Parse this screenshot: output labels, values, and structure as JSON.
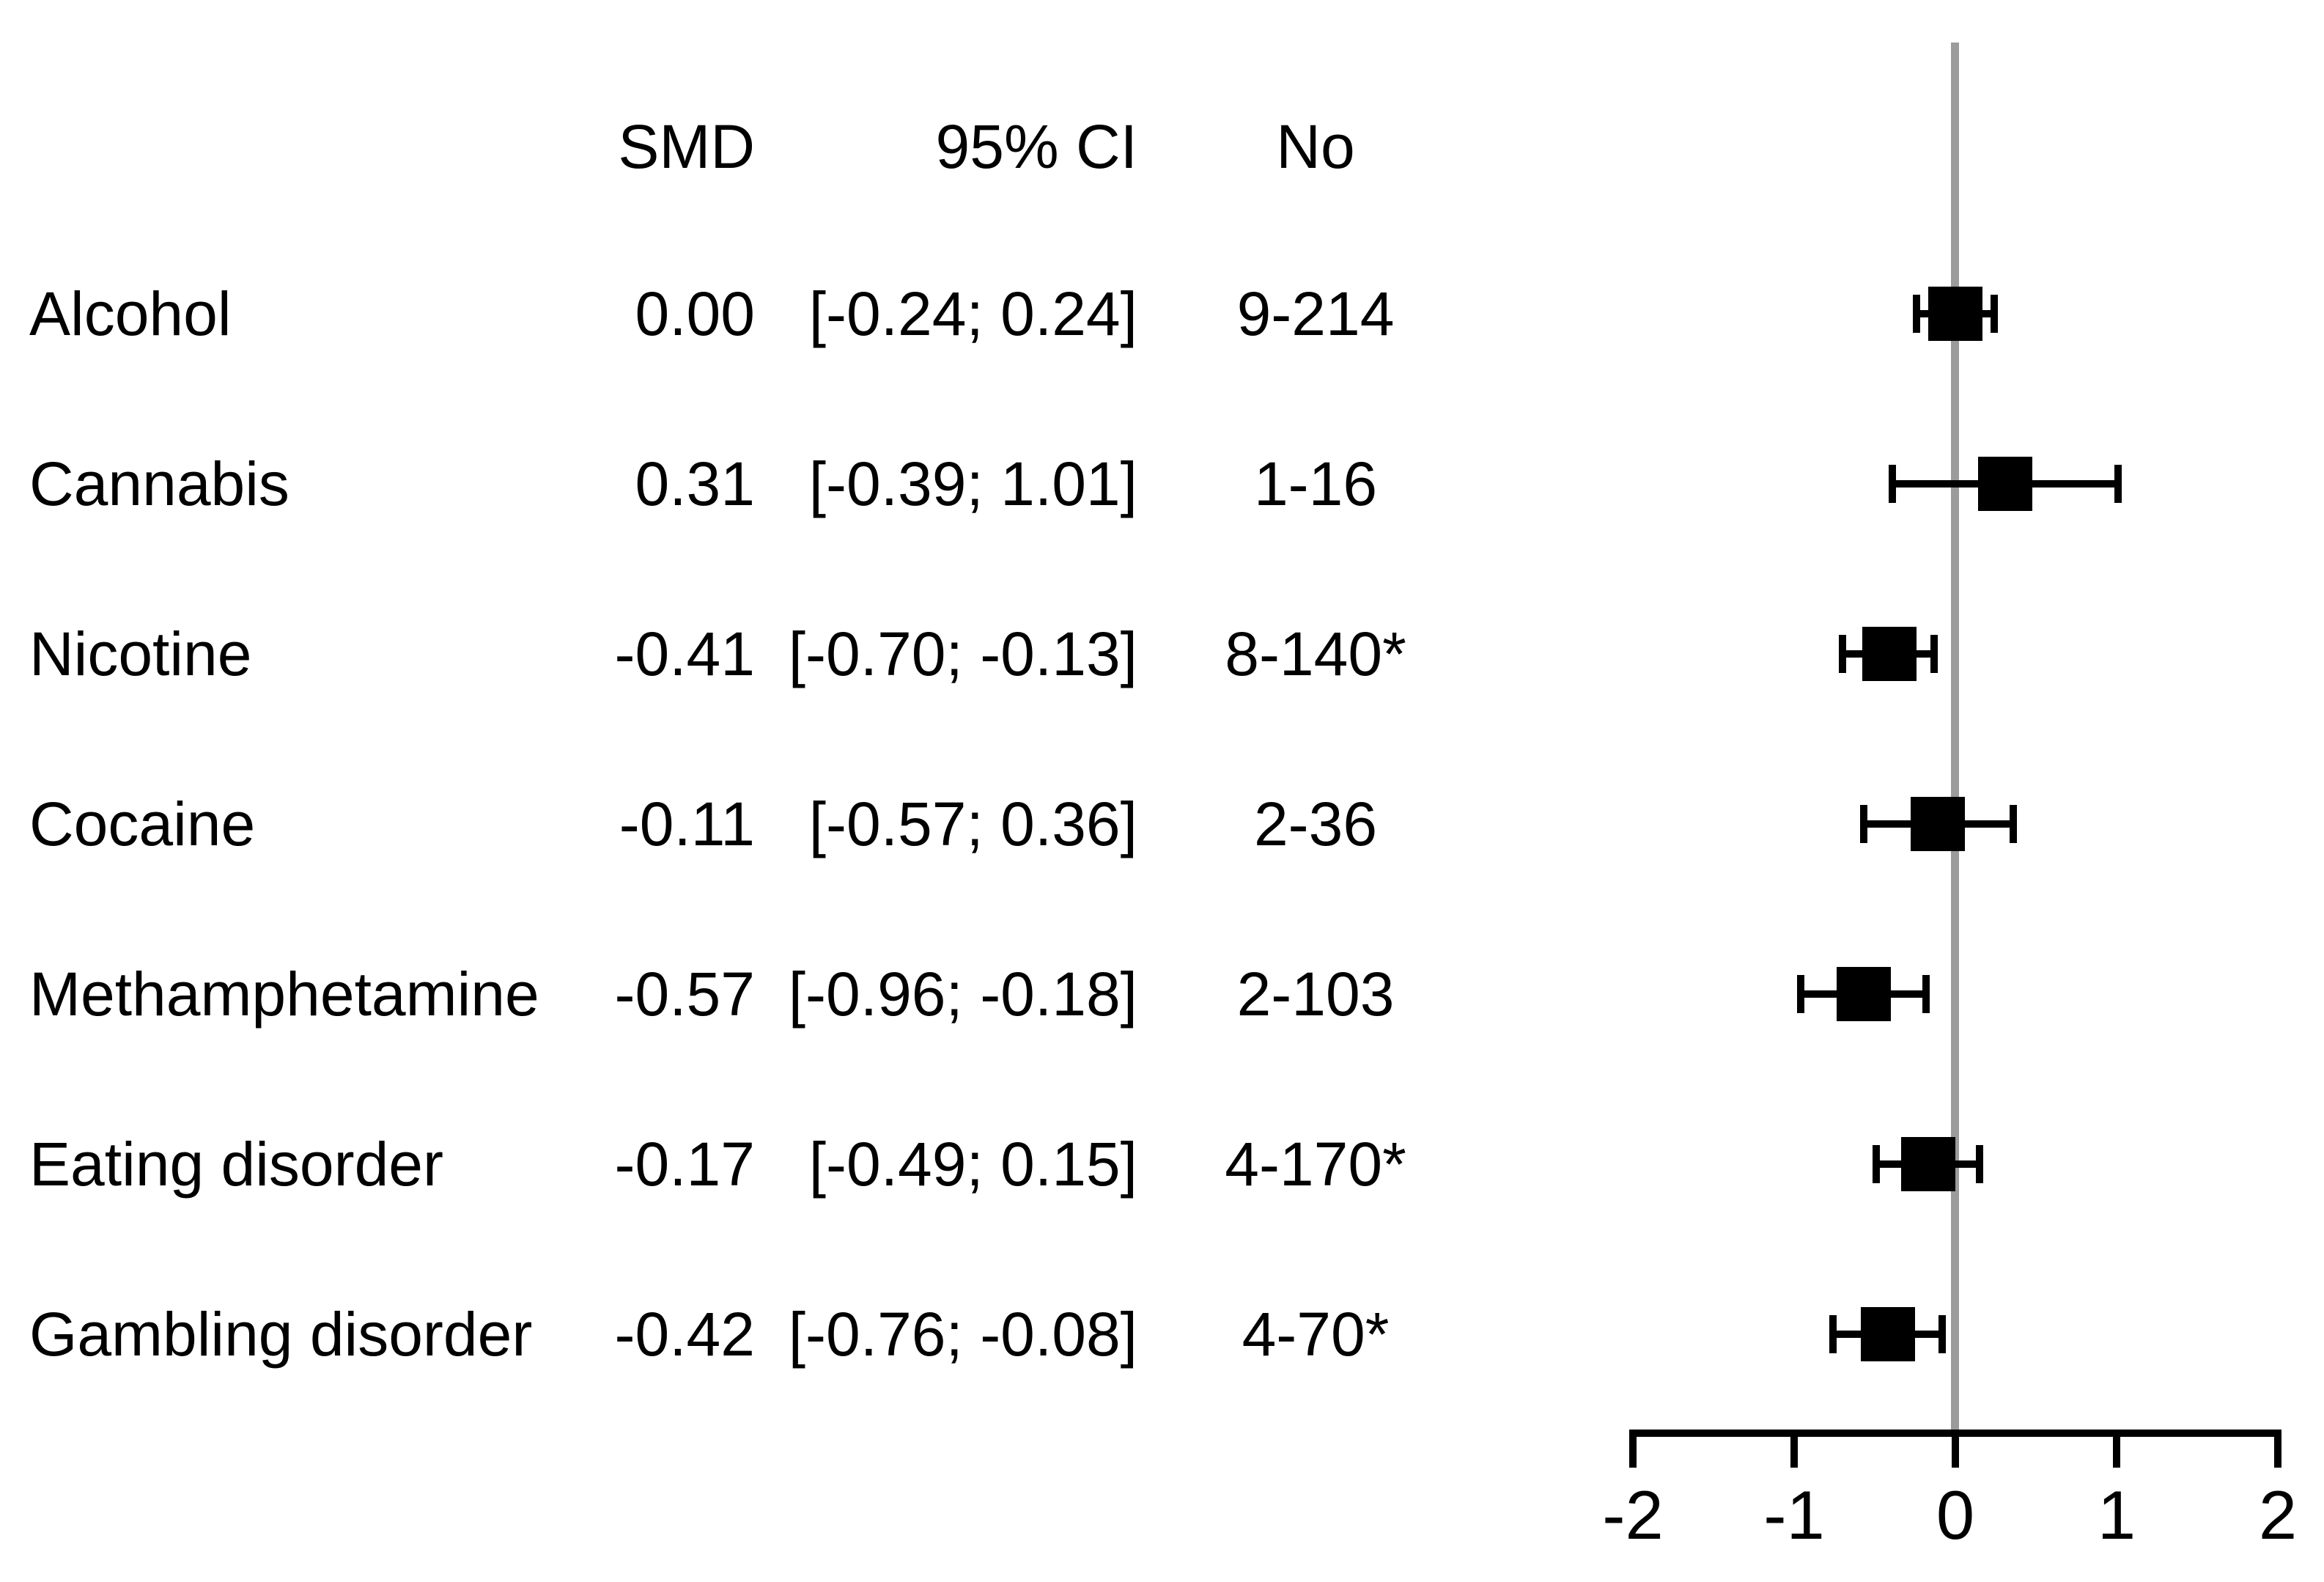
{
  "chart_data": {
    "type": "forest",
    "columns": {
      "smd": "SMD",
      "ci": "95% CI",
      "no": "No"
    },
    "rows": [
      {
        "label": "Alcohol",
        "smd_text": "0.00",
        "smd": 0.0,
        "ci_text": "[-0.24; 0.24]",
        "ci_low": -0.24,
        "ci_high": 0.24,
        "no": "9-214"
      },
      {
        "label": "Cannabis",
        "smd_text": "0.31",
        "smd": 0.31,
        "ci_text": "[-0.39; 1.01]",
        "ci_low": -0.39,
        "ci_high": 1.01,
        "no": "1-16"
      },
      {
        "label": "Nicotine",
        "smd_text": "-0.41",
        "smd": -0.41,
        "ci_text": "[-0.70; -0.13]",
        "ci_low": -0.7,
        "ci_high": -0.13,
        "no": "8-140*"
      },
      {
        "label": "Cocaine",
        "smd_text": "-0.11",
        "smd": -0.11,
        "ci_text": "[-0.57; 0.36]",
        "ci_low": -0.57,
        "ci_high": 0.36,
        "no": "2-36"
      },
      {
        "label": "Methamphetamine",
        "smd_text": "-0.57",
        "smd": -0.57,
        "ci_text": "[-0.96; -0.18]",
        "ci_low": -0.96,
        "ci_high": -0.18,
        "no": "2-103"
      },
      {
        "label": "Eating disorder",
        "smd_text": "-0.17",
        "smd": -0.17,
        "ci_text": "[-0.49; 0.15]",
        "ci_low": -0.49,
        "ci_high": 0.15,
        "no": "4-170*"
      },
      {
        "label": "Gambling disorder",
        "smd_text": "-0.42",
        "smd": -0.42,
        "ci_text": "[-0.76; -0.08]",
        "ci_low": -0.76,
        "ci_high": -0.08,
        "no": "4-70*"
      }
    ],
    "x_axis": {
      "ticks": [
        -2,
        -1,
        0,
        1,
        2
      ],
      "tick_labels": [
        "-2",
        "-1",
        "0",
        "1",
        "2"
      ],
      "xlim": [
        -2,
        2
      ],
      "reference_line": 0
    },
    "marker": "square",
    "legend": null,
    "grid": false,
    "colors": {
      "marker": "#000000",
      "reference_line": "#9b9b9b",
      "axis": "#000000",
      "text": "#000000",
      "background": "#ffffff"
    }
  }
}
